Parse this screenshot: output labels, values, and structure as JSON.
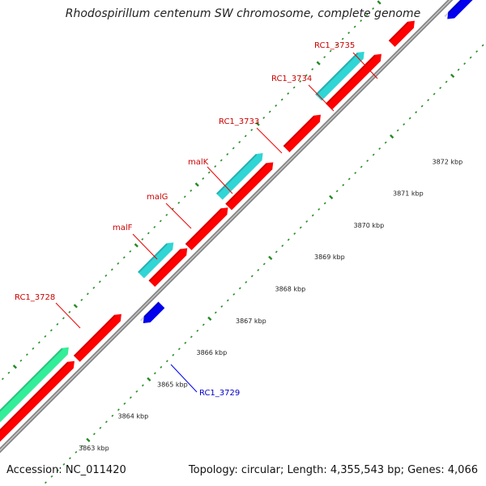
{
  "title": "Rhodospirillum centenum SW chromosome, complete genome",
  "footer": {
    "accession": "Accession: NC_011420",
    "summary": "Topology: circular; Length: 4,355,543 bp; Genes: 4,066"
  },
  "colors": {
    "background": "#ffffff",
    "backbone": "#888888",
    "tick": "#228B22",
    "forward_cds": "#ff0000",
    "forward_gene": "#30d5d5",
    "forward_gene_alt": "#33ee99",
    "reverse_gene": "#0000ee",
    "label_forward": "#cc0000",
    "label_reverse": "#0000cc"
  },
  "axis": {
    "unit": "kbp",
    "tick_labels": [
      "3863 kbp",
      "3864 kbp",
      "3865 kbp",
      "3866 kbp",
      "3867 kbp",
      "3868 kbp",
      "3869 kbp",
      "3870 kbp",
      "3871 kbp",
      "3872 kbp"
    ]
  },
  "gene_labels": [
    {
      "name": "RC1_3728",
      "strand": "forward"
    },
    {
      "name": "RC1_3729",
      "strand": "reverse"
    },
    {
      "name": "malF",
      "strand": "forward"
    },
    {
      "name": "malG",
      "strand": "forward"
    },
    {
      "name": "malK",
      "strand": "forward"
    },
    {
      "name": "RC1_3733",
      "strand": "forward"
    },
    {
      "name": "RC1_3734",
      "strand": "forward"
    },
    {
      "name": "RC1_3735",
      "strand": "forward"
    }
  ]
}
